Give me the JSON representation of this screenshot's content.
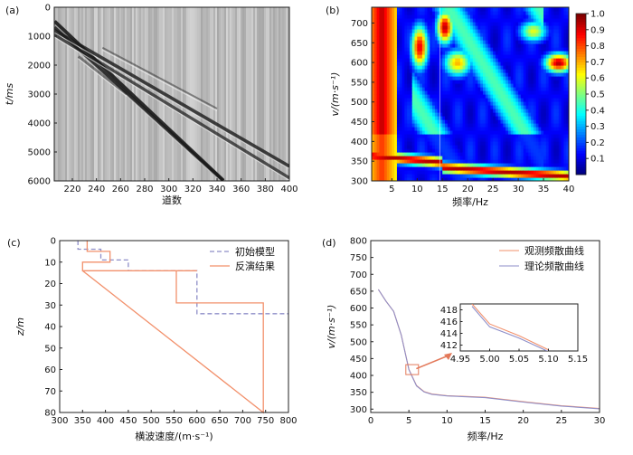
{
  "chart_data": [
    {
      "panel": "(a)",
      "type": "heatmap",
      "description_type": "seismic record (grayscale wiggle image)",
      "xlabel": "道数",
      "ylabel": "t/ms",
      "xlim": [
        205,
        400
      ],
      "ylim": [
        6000,
        0
      ],
      "xticks": [
        220,
        240,
        260,
        280,
        300,
        320,
        340,
        360,
        380,
        400
      ],
      "yticks": [
        0,
        1000,
        2000,
        3000,
        4000,
        5000,
        6000
      ],
      "events": [
        {
          "name": "direct",
          "x": [
            205,
            345
          ],
          "t": [
            500,
            6000
          ]
        },
        {
          "name": "direct2",
          "x": [
            205,
            345
          ],
          "t": [
            700,
            6000
          ]
        },
        {
          "name": "surface1",
          "x": [
            205,
            400
          ],
          "t": [
            800,
            5500
          ]
        },
        {
          "name": "surface2",
          "x": [
            205,
            400
          ],
          "t": [
            950,
            5900
          ]
        },
        {
          "name": "weak1",
          "x": [
            245,
            340
          ],
          "t": [
            1400,
            3500
          ]
        },
        {
          "name": "weak2",
          "x": [
            225,
            265
          ],
          "t": [
            1700,
            3000
          ]
        }
      ],
      "colormap": "gray"
    },
    {
      "panel": "(b)",
      "type": "heatmap",
      "description_type": "frequency-velocity dispersion spectrum",
      "xlabel": "频率/Hz",
      "ylabel": "v/(m·s⁻¹)",
      "xlim": [
        1,
        40
      ],
      "ylim": [
        300,
        740
      ],
      "xticks": [
        5,
        10,
        15,
        20,
        25,
        30,
        35,
        40
      ],
      "yticks": [
        300,
        350,
        400,
        450,
        500,
        550,
        600,
        650,
        700
      ],
      "colorbar": {
        "min": 0.0,
        "max": 1.0,
        "ticks": [
          0.1,
          0.2,
          0.3,
          0.4,
          0.5,
          0.6,
          0.7,
          0.8,
          0.9,
          1.0
        ]
      },
      "colormap": "jet"
    },
    {
      "panel": "(c)",
      "type": "line",
      "xlabel": "横波速度/(m·s⁻¹)",
      "ylabel": "z/m",
      "xlim": [
        300,
        800
      ],
      "ylim": [
        80,
        0
      ],
      "xticks": [
        300,
        350,
        400,
        450,
        500,
        550,
        600,
        650,
        700,
        750,
        800
      ],
      "yticks": [
        0,
        10,
        20,
        30,
        40,
        50,
        60,
        70,
        80
      ],
      "legend_position": "top-right",
      "series": [
        {
          "name": "初始模型",
          "style": "dashed",
          "color": "#8e8ec8",
          "x": [
            340,
            340,
            390,
            390,
            450,
            450,
            600,
            600,
            800
          ],
          "y": [
            0,
            4,
            4,
            9,
            9,
            14,
            14,
            34,
            34
          ]
        },
        {
          "name": "反演结果",
          "style": "solid",
          "color": "#f2906b",
          "x": [
            360,
            360,
            410,
            410,
            350,
            350,
            600,
            600,
            555,
            555,
            745,
            745,
            350,
            350,
            360
          ],
          "y": [
            0,
            5,
            5,
            10,
            10,
            14,
            14,
            14,
            14,
            29,
            29,
            80,
            14,
            10,
            10
          ]
        }
      ]
    },
    {
      "panel": "(d)",
      "type": "line",
      "xlabel": "频率/Hz",
      "ylabel": "v/(m·s⁻¹)",
      "xlim": [
        0,
        30
      ],
      "ylim": [
        290,
        800
      ],
      "xticks": [
        0,
        5,
        10,
        15,
        20,
        25,
        30
      ],
      "yticks": [
        300,
        350,
        400,
        450,
        500,
        550,
        600,
        650,
        700,
        750,
        800
      ],
      "legend_position": "top-right",
      "series": [
        {
          "name": "观测频散曲线",
          "color": "#f2906b",
          "x": [
            1,
            2,
            3,
            4,
            5,
            6,
            7,
            8,
            10,
            15,
            20,
            25,
            30
          ],
          "y": [
            655,
            620,
            590,
            520,
            418,
            370,
            352,
            345,
            340,
            335,
            322,
            310,
            302
          ]
        },
        {
          "name": "理论频散曲线",
          "color": "#8e8ec8",
          "x": [
            1,
            2,
            3,
            4,
            5,
            6,
            7,
            8,
            10,
            15,
            20,
            25,
            30
          ],
          "y": [
            655,
            620,
            590,
            520,
            417,
            369,
            351,
            344,
            339,
            334,
            321,
            309,
            301
          ]
        }
      ],
      "inset": {
        "xlim": [
          4.95,
          5.15
        ],
        "ylim": [
          411,
          419
        ],
        "xticks": [
          4.95,
          5.0,
          5.05,
          5.1,
          5.15
        ],
        "yticks": [
          412,
          414,
          416,
          418
        ],
        "series": [
          {
            "name": "观测频散曲线",
            "color": "#f2906b",
            "x": [
              4.97,
              5.0,
              5.05,
              5.1
            ],
            "y": [
              419,
              415.6,
              413.6,
              411.2
            ]
          },
          {
            "name": "理论频散曲线",
            "color": "#8e8ec8",
            "x": [
              4.97,
              5.0,
              5.05,
              5.1
            ],
            "y": [
              418.6,
              415.1,
              413.2,
              410.9
            ]
          }
        ]
      }
    }
  ],
  "labels": {
    "a": "(a)",
    "b": "(b)",
    "c": "(c)",
    "d": "(d)"
  }
}
